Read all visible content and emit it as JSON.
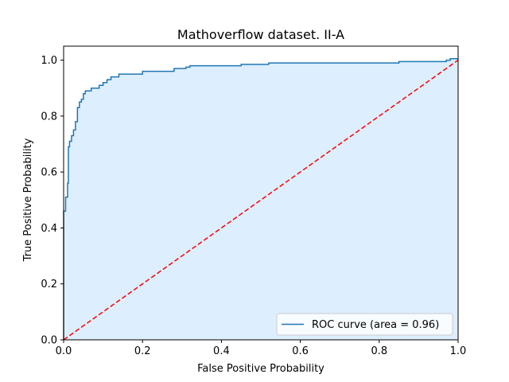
{
  "chart_data": {
    "type": "line",
    "title": "Mathoverflow dataset. II-A",
    "xlabel": "False Positive Probability",
    "ylabel": "True Positive Probability",
    "xlim": [
      0.0,
      1.0
    ],
    "ylim": [
      0.0,
      1.05
    ],
    "xticks": [
      0.0,
      0.2,
      0.4,
      0.6,
      0.8,
      1.0
    ],
    "xtick_labels": [
      "0.0",
      "0.2",
      "0.4",
      "0.6",
      "0.8",
      "1.0"
    ],
    "yticks": [
      0.0,
      0.2,
      0.4,
      0.6,
      0.8,
      1.0
    ],
    "ytick_labels": [
      "0.0",
      "0.2",
      "0.4",
      "0.6",
      "0.8",
      "1.0"
    ],
    "grid": false,
    "legend": {
      "placement": "lower-right"
    },
    "colors": {
      "roc": "#1f77b4",
      "fill": "#ddeeff",
      "diagonal": "#ff0000"
    },
    "series": [
      {
        "name": "ROC curve (area = 0.96)",
        "style": "step",
        "x": [
          0.0,
          0.0,
          0.005,
          0.005,
          0.01,
          0.01,
          0.012,
          0.012,
          0.015,
          0.015,
          0.02,
          0.02,
          0.025,
          0.025,
          0.03,
          0.03,
          0.035,
          0.035,
          0.04,
          0.04,
          0.045,
          0.045,
          0.05,
          0.05,
          0.055,
          0.055,
          0.06,
          0.06,
          0.07,
          0.07,
          0.08,
          0.08,
          0.09,
          0.09,
          0.1,
          0.1,
          0.11,
          0.11,
          0.12,
          0.12,
          0.13,
          0.13,
          0.14,
          0.14,
          0.16,
          0.16,
          0.2,
          0.2,
          0.22,
          0.22,
          0.28,
          0.28,
          0.31,
          0.31,
          0.32,
          0.32,
          0.45,
          0.45,
          0.52,
          0.52,
          0.85,
          0.85,
          0.97,
          0.97,
          0.98,
          0.98,
          1.0
        ],
        "y": [
          0.0,
          0.46,
          0.46,
          0.51,
          0.51,
          0.56,
          0.56,
          0.69,
          0.69,
          0.71,
          0.71,
          0.73,
          0.73,
          0.75,
          0.75,
          0.78,
          0.78,
          0.83,
          0.83,
          0.85,
          0.85,
          0.86,
          0.86,
          0.88,
          0.88,
          0.89,
          0.89,
          0.89,
          0.89,
          0.9,
          0.9,
          0.9,
          0.9,
          0.91,
          0.91,
          0.92,
          0.92,
          0.93,
          0.93,
          0.94,
          0.94,
          0.94,
          0.94,
          0.95,
          0.95,
          0.95,
          0.95,
          0.96,
          0.96,
          0.96,
          0.96,
          0.97,
          0.97,
          0.975,
          0.975,
          0.98,
          0.98,
          0.985,
          0.985,
          0.99,
          0.99,
          0.995,
          0.995,
          1.0,
          1.0,
          1.005,
          1.005
        ]
      },
      {
        "name": "",
        "style": "dashed",
        "x": [
          0.0,
          1.0
        ],
        "y": [
          0.0,
          1.0
        ]
      }
    ]
  }
}
